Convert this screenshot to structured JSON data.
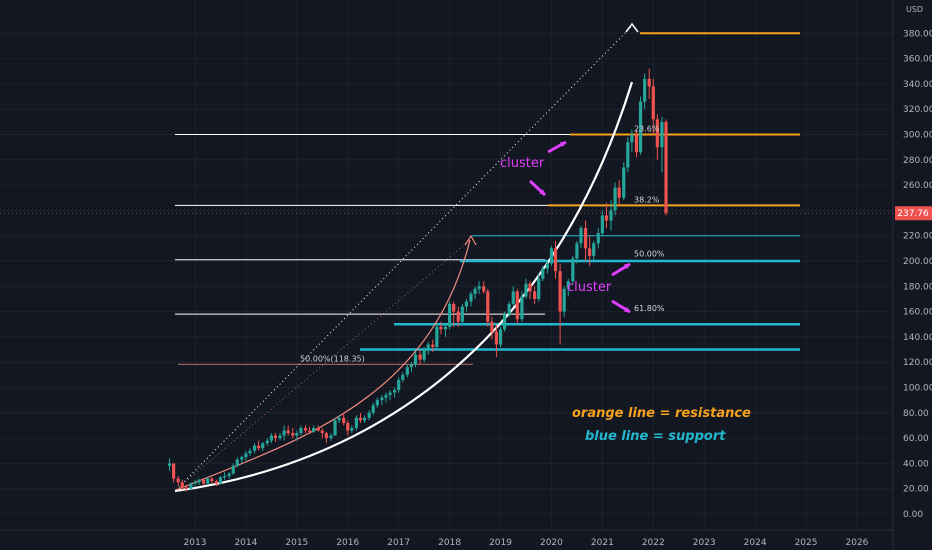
{
  "chart_data": {
    "type": "candlestick",
    "currency": "USD",
    "last_price": "237.76",
    "ylim": [
      -15,
      395
    ],
    "y_ticks": [
      "0.00",
      "20.00",
      "40.00",
      "60.00",
      "80.00",
      "100.00",
      "120.00",
      "140.00",
      "160.00",
      "180.00",
      "200.00",
      "220.00",
      "240.00",
      "260.00",
      "280.00",
      "300.00",
      "320.00",
      "340.00",
      "360.00",
      "380.00"
    ],
    "y_tick_values": [
      0,
      20,
      40,
      60,
      80,
      100,
      120,
      140,
      160,
      180,
      200,
      220,
      240,
      260,
      280,
      300,
      320,
      340,
      360,
      380
    ],
    "x_ticks": [
      "2013",
      "2014",
      "2015",
      "2016",
      "2017",
      "2018",
      "2019",
      "2020",
      "2021",
      "2022",
      "2023",
      "2024",
      "2025",
      "2026"
    ],
    "x_tick_years": [
      2013,
      2014,
      2015,
      2016,
      2017,
      2018,
      2019,
      2020,
      2021,
      2022,
      2023,
      2024,
      2025,
      2026
    ],
    "candles": [
      [
        2012.5,
        38,
        44,
        34,
        40
      ],
      [
        2012.58,
        40,
        40,
        25,
        28
      ],
      [
        2012.67,
        28,
        30,
        22,
        25
      ],
      [
        2012.75,
        25,
        27,
        19,
        21
      ],
      [
        2012.83,
        21,
        23,
        18,
        20
      ],
      [
        2012.92,
        20,
        25,
        19,
        24
      ],
      [
        2013.0,
        24,
        27,
        22,
        25
      ],
      [
        2013.08,
        25,
        28,
        23,
        27
      ],
      [
        2013.17,
        27,
        27,
        23,
        24
      ],
      [
        2013.25,
        24,
        29,
        23,
        28
      ],
      [
        2013.33,
        28,
        29,
        24,
        26
      ],
      [
        2013.42,
        26,
        27,
        22,
        24
      ],
      [
        2013.5,
        24,
        30,
        24,
        29
      ],
      [
        2013.58,
        29,
        33,
        27,
        30
      ],
      [
        2013.67,
        30,
        33,
        28,
        32
      ],
      [
        2013.75,
        32,
        40,
        31,
        38
      ],
      [
        2013.83,
        38,
        45,
        37,
        43
      ],
      [
        2013.92,
        43,
        46,
        40,
        45
      ],
      [
        2014.0,
        45,
        50,
        42,
        48
      ],
      [
        2014.08,
        48,
        52,
        46,
        50
      ],
      [
        2014.17,
        50,
        56,
        48,
        54
      ],
      [
        2014.25,
        54,
        58,
        50,
        52
      ],
      [
        2014.33,
        52,
        57,
        50,
        56
      ],
      [
        2014.42,
        56,
        60,
        54,
        58
      ],
      [
        2014.5,
        58,
        64,
        56,
        62
      ],
      [
        2014.58,
        62,
        64,
        57,
        60
      ],
      [
        2014.67,
        60,
        64,
        58,
        62
      ],
      [
        2014.75,
        62,
        70,
        58,
        66
      ],
      [
        2014.83,
        66,
        70,
        62,
        64
      ],
      [
        2014.92,
        64,
        68,
        60,
        62
      ],
      [
        2015.0,
        62,
        66,
        58,
        64
      ],
      [
        2015.08,
        64,
        70,
        62,
        68
      ],
      [
        2015.17,
        68,
        70,
        64,
        66
      ],
      [
        2015.25,
        66,
        69,
        63,
        65
      ],
      [
        2015.33,
        65,
        70,
        64,
        68
      ],
      [
        2015.42,
        68,
        70,
        65,
        66
      ],
      [
        2015.5,
        66,
        68,
        60,
        64
      ],
      [
        2015.58,
        64,
        65,
        56,
        60
      ],
      [
        2015.67,
        60,
        64,
        58,
        62
      ],
      [
        2015.75,
        62,
        76,
        62,
        74
      ],
      [
        2015.83,
        74,
        78,
        72,
        76
      ],
      [
        2015.92,
        76,
        80,
        70,
        72
      ],
      [
        2016.0,
        72,
        74,
        62,
        66
      ],
      [
        2016.08,
        66,
        70,
        64,
        68
      ],
      [
        2016.17,
        68,
        78,
        66,
        76
      ],
      [
        2016.25,
        76,
        80,
        72,
        74
      ],
      [
        2016.33,
        74,
        78,
        72,
        76
      ],
      [
        2016.42,
        76,
        82,
        74,
        80
      ],
      [
        2016.5,
        80,
        88,
        78,
        86
      ],
      [
        2016.58,
        86,
        92,
        84,
        90
      ],
      [
        2016.67,
        90,
        94,
        86,
        92
      ],
      [
        2016.75,
        92,
        96,
        88,
        94
      ],
      [
        2016.83,
        94,
        98,
        90,
        96
      ],
      [
        2016.92,
        96,
        100,
        92,
        98
      ],
      [
        2017.0,
        98,
        108,
        96,
        106
      ],
      [
        2017.08,
        106,
        112,
        104,
        110
      ],
      [
        2017.17,
        110,
        118,
        108,
        116
      ],
      [
        2017.25,
        116,
        120,
        112,
        118
      ],
      [
        2017.33,
        118,
        128,
        116,
        126
      ],
      [
        2017.42,
        126,
        130,
        118,
        122
      ],
      [
        2017.5,
        122,
        132,
        120,
        130
      ],
      [
        2017.58,
        130,
        136,
        126,
        134
      ],
      [
        2017.67,
        134,
        138,
        128,
        132
      ],
      [
        2017.75,
        132,
        150,
        130,
        148
      ],
      [
        2017.83,
        148,
        152,
        142,
        146
      ],
      [
        2017.92,
        146,
        150,
        140,
        148
      ],
      [
        2018.0,
        148,
        168,
        146,
        166
      ],
      [
        2018.08,
        166,
        168,
        148,
        160
      ],
      [
        2018.17,
        160,
        164,
        148,
        152
      ],
      [
        2018.25,
        152,
        166,
        150,
        164
      ],
      [
        2018.33,
        164,
        170,
        160,
        168
      ],
      [
        2018.42,
        168,
        176,
        164,
        174
      ],
      [
        2018.5,
        174,
        180,
        170,
        178
      ],
      [
        2018.58,
        178,
        184,
        174,
        180
      ],
      [
        2018.67,
        180,
        184,
        174,
        176
      ],
      [
        2018.75,
        176,
        178,
        148,
        152
      ],
      [
        2018.83,
        152,
        156,
        138,
        144
      ],
      [
        2018.92,
        144,
        150,
        124,
        134
      ],
      [
        2019.0,
        134,
        148,
        132,
        146
      ],
      [
        2019.08,
        146,
        160,
        144,
        158
      ],
      [
        2019.17,
        158,
        168,
        156,
        166
      ],
      [
        2019.25,
        166,
        180,
        164,
        176
      ],
      [
        2019.33,
        176,
        178,
        150,
        154
      ],
      [
        2019.42,
        154,
        176,
        152,
        172
      ],
      [
        2019.5,
        172,
        186,
        170,
        182
      ],
      [
        2019.58,
        182,
        184,
        170,
        176
      ],
      [
        2019.67,
        176,
        180,
        166,
        170
      ],
      [
        2019.75,
        170,
        190,
        168,
        186
      ],
      [
        2019.83,
        186,
        196,
        184,
        194
      ],
      [
        2019.92,
        194,
        200,
        190,
        198
      ],
      [
        2020.0,
        198,
        212,
        196,
        210
      ],
      [
        2020.08,
        210,
        216,
        186,
        192
      ],
      [
        2020.17,
        192,
        198,
        134,
        160
      ],
      [
        2020.25,
        160,
        180,
        156,
        178
      ],
      [
        2020.33,
        178,
        186,
        172,
        184
      ],
      [
        2020.42,
        184,
        204,
        182,
        202
      ],
      [
        2020.5,
        202,
        216,
        198,
        214
      ],
      [
        2020.58,
        214,
        228,
        210,
        226
      ],
      [
        2020.67,
        226,
        232,
        200,
        210
      ],
      [
        2020.75,
        210,
        220,
        196,
        204
      ],
      [
        2020.83,
        204,
        216,
        200,
        214
      ],
      [
        2020.92,
        214,
        226,
        210,
        222
      ],
      [
        2021.0,
        222,
        240,
        220,
        236
      ],
      [
        2021.08,
        236,
        246,
        226,
        232
      ],
      [
        2021.17,
        232,
        248,
        224,
        240
      ],
      [
        2021.25,
        240,
        262,
        236,
        258
      ],
      [
        2021.33,
        258,
        264,
        244,
        250
      ],
      [
        2021.42,
        250,
        278,
        248,
        274
      ],
      [
        2021.5,
        274,
        298,
        270,
        294
      ],
      [
        2021.58,
        294,
        304,
        286,
        300
      ],
      [
        2021.67,
        300,
        304,
        282,
        286
      ],
      [
        2021.75,
        286,
        330,
        284,
        326
      ],
      [
        2021.83,
        326,
        348,
        320,
        344
      ],
      [
        2021.92,
        344,
        352,
        328,
        338
      ],
      [
        2022.0,
        338,
        344,
        300,
        312
      ],
      [
        2022.08,
        312,
        316,
        280,
        290
      ],
      [
        2022.17,
        290,
        314,
        270,
        310
      ],
      [
        2022.25,
        310,
        312,
        236,
        238
      ]
    ],
    "fib_levels": [
      {
        "label": "23.6%",
        "value": 300
      },
      {
        "label": "38.2%",
        "value": 244
      },
      {
        "label": "50.00%",
        "value": 201
      },
      {
        "label": "61.80%",
        "value": 158
      }
    ],
    "fib_small_label": "50.00%(118.35)",
    "resistance_lines": [
      380,
      300,
      244
    ],
    "support_lines": [
      220,
      200,
      150,
      130
    ],
    "annotations": {
      "resistance_note": "orange line = resistance",
      "support_note": "blue line = support",
      "cluster_1": "cluster",
      "cluster_2": "cluster"
    },
    "colors": {
      "up": "#26a69a",
      "down": "#ef5350",
      "resistance": "#f7a21b",
      "support": "#22b8cf",
      "fib": "#ffffff",
      "cluster": "#e040fb",
      "price_tag": "#ef5350"
    }
  }
}
